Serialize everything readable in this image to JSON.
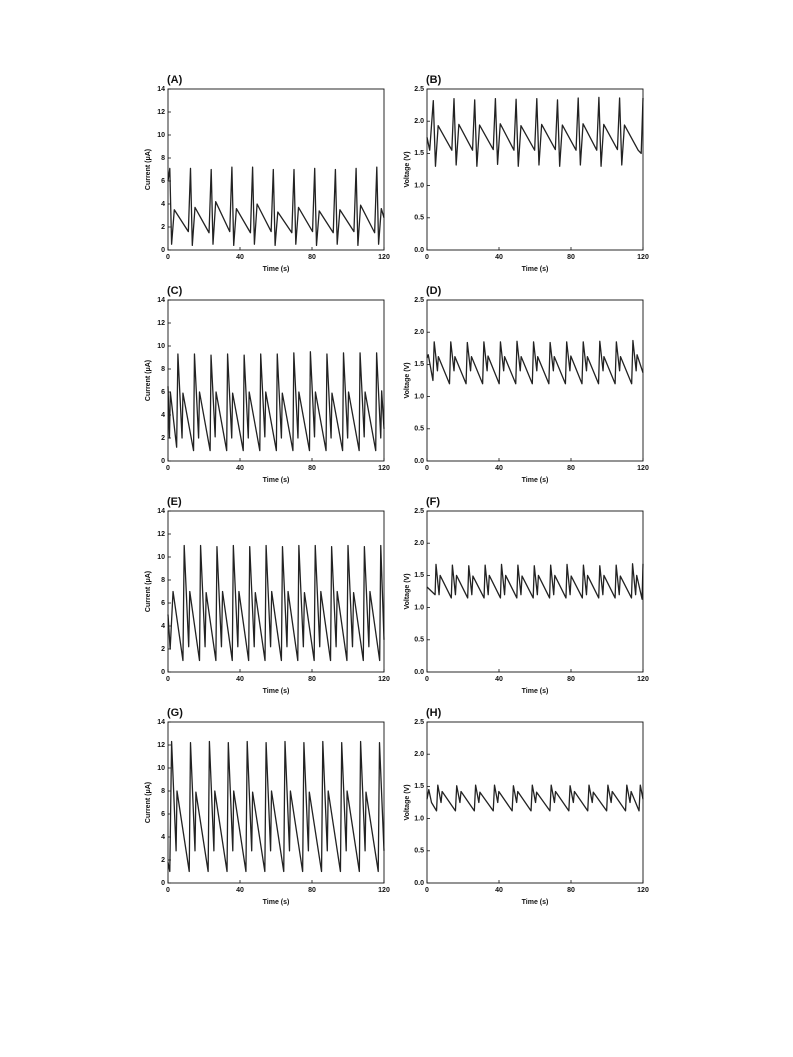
{
  "chart_data": [
    {
      "type": "line",
      "label": "(A)",
      "xlabel": "Time (s)",
      "ylabel": "Current (μA)",
      "color": "#222222",
      "xlim": [
        0,
        120
      ],
      "xticks": [
        0,
        40,
        80,
        120
      ],
      "ylim": [
        0,
        14
      ],
      "yticks": [
        0,
        2,
        4,
        6,
        8,
        10,
        12,
        14
      ],
      "x": [
        0,
        1,
        2,
        3.5,
        11.3,
        12.5,
        13.5,
        15,
        22.8,
        24,
        25,
        26.5,
        34.3,
        35.5,
        36.5,
        38,
        45.8,
        47,
        48,
        49.5,
        57.3,
        58.5,
        59.5,
        61,
        68.8,
        70,
        71,
        72.5,
        80.3,
        81.5,
        82.5,
        84,
        91.8,
        93,
        94,
        95.5,
        103.3,
        104.5,
        105.5,
        107,
        114.8,
        116,
        117,
        118.5,
        120
      ],
      "values": [
        6.0,
        7.1,
        0.5,
        3.5,
        1.6,
        7.1,
        0.4,
        3.7,
        1.5,
        7.0,
        0.5,
        4.2,
        1.6,
        7.2,
        0.4,
        3.6,
        1.5,
        7.2,
        0.5,
        4.0,
        1.6,
        7.0,
        0.4,
        3.3,
        1.5,
        7.0,
        0.5,
        3.7,
        1.6,
        7.1,
        0.4,
        3.4,
        1.5,
        7.0,
        0.5,
        3.5,
        1.6,
        7.1,
        0.4,
        3.9,
        1.5,
        7.2,
        0.5,
        3.6,
        2.8
      ]
    },
    {
      "type": "line",
      "label": "(B)",
      "xlabel": "Time (s)",
      "ylabel": "Voltage (V)",
      "color": "#222222",
      "xlim": [
        0,
        120
      ],
      "xticks": [
        0,
        40,
        80,
        120
      ],
      "ylim": [
        0,
        2.5
      ],
      "yticks": [
        {
          "value": 0,
          "label": "0.0"
        },
        0.5,
        {
          "value": 1,
          "label": "1.0"
        },
        1.5,
        {
          "value": 2,
          "label": "2.0"
        },
        2.5
      ],
      "x": [
        0,
        1.5,
        3.5,
        4.7,
        6.2,
        13.8,
        15,
        16.2,
        17.7,
        25.3,
        26.5,
        27.7,
        29.2,
        36.8,
        38,
        39.2,
        40.7,
        48.3,
        49.5,
        50.7,
        52.2,
        59.8,
        61,
        62.2,
        63.7,
        71.3,
        72.5,
        73.7,
        75.2,
        82.8,
        84,
        85.2,
        86.7,
        94.3,
        95.5,
        96.7,
        98.2,
        105.8,
        107,
        108.2,
        109.7,
        117.3,
        119,
        120
      ],
      "values": [
        1.75,
        1.55,
        2.32,
        1.3,
        1.93,
        1.55,
        2.35,
        1.32,
        1.95,
        1.55,
        2.33,
        1.3,
        1.94,
        1.56,
        2.35,
        1.33,
        1.96,
        1.55,
        2.34,
        1.3,
        1.93,
        1.55,
        2.35,
        1.32,
        1.95,
        1.56,
        2.33,
        1.3,
        1.94,
        1.55,
        2.36,
        1.32,
        1.96,
        1.55,
        2.37,
        1.3,
        1.95,
        1.56,
        2.36,
        1.32,
        1.94,
        1.55,
        1.5,
        2.36
      ]
    },
    {
      "type": "line",
      "label": "(C)",
      "xlabel": "Time (s)",
      "ylabel": "Current (μA)",
      "color": "#222222",
      "xlim": [
        0,
        120
      ],
      "xticks": [
        0,
        40,
        80,
        120
      ],
      "ylim": [
        0,
        14
      ],
      "yticks": [
        0,
        2,
        4,
        6,
        8,
        10,
        12,
        14
      ],
      "x": [
        0,
        0.8,
        1.3,
        4.8,
        5.5,
        7.8,
        8.3,
        14.2,
        14.7,
        17,
        17.5,
        23.4,
        23.9,
        26.2,
        26.7,
        32.6,
        33.1,
        35.4,
        35.9,
        41.8,
        42.3,
        44.6,
        45.1,
        51,
        51.5,
        53.8,
        54.3,
        60.2,
        60.7,
        63,
        63.5,
        69.4,
        69.9,
        72.2,
        72.7,
        78.6,
        79.1,
        81.4,
        81.9,
        87.8,
        88.3,
        90.6,
        91.1,
        97,
        97.5,
        99.8,
        100.3,
        106.2,
        106.7,
        109,
        109.5,
        115.4,
        115.9,
        118.2,
        118.7,
        120
      ],
      "values": [
        6.5,
        2.0,
        6.0,
        1.2,
        9.3,
        2.0,
        5.9,
        0.9,
        9.3,
        2.0,
        6.0,
        0.9,
        9.2,
        2.1,
        6.0,
        0.9,
        9.3,
        2.0,
        5.9,
        0.9,
        9.2,
        2.0,
        6.0,
        0.9,
        9.3,
        2.1,
        6.0,
        0.9,
        9.3,
        2.0,
        5.9,
        0.9,
        9.4,
        2.0,
        6.0,
        0.9,
        9.5,
        2.1,
        6.0,
        0.9,
        9.3,
        2.0,
        5.9,
        0.9,
        9.4,
        2.0,
        6.0,
        0.9,
        9.4,
        2.1,
        6.0,
        0.9,
        9.4,
        2.0,
        6.1,
        2.8
      ]
    },
    {
      "type": "line",
      "label": "(D)",
      "xlabel": "Time (s)",
      "ylabel": "Voltage (V)",
      "color": "#222222",
      "xlim": [
        0,
        120
      ],
      "xticks": [
        0,
        40,
        80,
        120
      ],
      "ylim": [
        0,
        2.5
      ],
      "yticks": [
        {
          "value": 0,
          "label": "0.0"
        },
        0.5,
        {
          "value": 1,
          "label": "1.0"
        },
        1.5,
        {
          "value": 2,
          "label": "2.0"
        },
        2.5
      ],
      "x": [
        0,
        0.7,
        3.3,
        4,
        5.8,
        6.3,
        12.5,
        13.2,
        15,
        15.5,
        21.7,
        22.4,
        24.2,
        24.7,
        30.9,
        31.6,
        33.4,
        33.9,
        40.1,
        40.8,
        42.6,
        43.1,
        49.3,
        50,
        51.8,
        52.3,
        58.5,
        59.2,
        61,
        61.5,
        67.7,
        68.4,
        70.2,
        70.7,
        76.9,
        77.6,
        79.4,
        79.9,
        86.1,
        86.8,
        88.6,
        89.1,
        95.3,
        96,
        97.8,
        98.3,
        104.5,
        105.2,
        107,
        107.5,
        113.7,
        114.4,
        116.2,
        116.7,
        120
      ],
      "values": [
        1.6,
        1.65,
        1.25,
        1.85,
        1.4,
        1.62,
        1.2,
        1.85,
        1.4,
        1.62,
        1.2,
        1.84,
        1.4,
        1.62,
        1.2,
        1.85,
        1.4,
        1.63,
        1.2,
        1.85,
        1.4,
        1.62,
        1.2,
        1.86,
        1.4,
        1.62,
        1.2,
        1.85,
        1.4,
        1.62,
        1.2,
        1.84,
        1.4,
        1.62,
        1.2,
        1.85,
        1.4,
        1.63,
        1.2,
        1.85,
        1.4,
        1.62,
        1.2,
        1.86,
        1.4,
        1.62,
        1.2,
        1.85,
        1.4,
        1.62,
        1.2,
        1.87,
        1.4,
        1.65,
        1.37
      ]
    },
    {
      "type": "line",
      "label": "(E)",
      "xlabel": "Time (s)",
      "ylabel": "Current (μA)",
      "color": "#222222",
      "xlim": [
        0,
        120
      ],
      "xticks": [
        0,
        40,
        80,
        120
      ],
      "ylim": [
        0,
        14
      ],
      "yticks": [
        0,
        2,
        4,
        6,
        8,
        10,
        12,
        14
      ],
      "x": [
        0,
        1.2,
        2.8,
        8.3,
        9,
        11.5,
        12.1,
        17.5,
        18.1,
        20.6,
        21.2,
        26.6,
        27.2,
        29.7,
        30.3,
        35.7,
        36.3,
        38.8,
        39.4,
        44.8,
        45.4,
        47.9,
        48.5,
        53.9,
        54.5,
        57,
        57.6,
        63,
        63.6,
        66.1,
        66.7,
        72.1,
        72.7,
        75.2,
        75.8,
        81.2,
        81.8,
        84.3,
        84.9,
        90.3,
        90.9,
        93.4,
        94,
        99.4,
        100,
        102.5,
        103.1,
        108.5,
        109.1,
        111.6,
        112.2,
        117.6,
        118.2,
        120
      ],
      "values": [
        5.0,
        2.0,
        7.0,
        1.0,
        11.0,
        2.2,
        7.0,
        1.0,
        11.0,
        2.2,
        6.9,
        1.0,
        10.9,
        2.2,
        7.0,
        1.0,
        11.0,
        2.2,
        7.0,
        1.0,
        10.9,
        2.2,
        6.9,
        1.0,
        11.0,
        2.2,
        7.0,
        1.0,
        10.9,
        2.2,
        7.0,
        1.0,
        11.0,
        2.2,
        6.9,
        1.0,
        11.0,
        2.2,
        7.0,
        1.0,
        10.9,
        2.2,
        7.0,
        1.0,
        11.0,
        2.2,
        6.9,
        1.0,
        10.9,
        2.2,
        7.0,
        1.0,
        11.0,
        2.8
      ]
    },
    {
      "type": "line",
      "label": "(F)",
      "xlabel": "Time (s)",
      "ylabel": "Voltage (V)",
      "color": "#222222",
      "xlim": [
        0,
        120
      ],
      "xticks": [
        0,
        40,
        80,
        120
      ],
      "ylim": [
        0,
        2.5
      ],
      "yticks": [
        {
          "value": 0,
          "label": "0.0"
        },
        0.5,
        {
          "value": 1,
          "label": "1.0"
        },
        1.5,
        {
          "value": 2,
          "label": "2.0"
        },
        2.5
      ],
      "x": [
        0,
        4.5,
        5,
        6.7,
        7.3,
        13.5,
        14.1,
        15.8,
        16.4,
        22.6,
        23.2,
        24.9,
        25.5,
        31.7,
        32.3,
        34,
        34.6,
        40.8,
        41.4,
        43.1,
        43.7,
        49.9,
        50.5,
        52.2,
        52.8,
        59,
        59.6,
        61.3,
        61.9,
        68.1,
        68.7,
        70.4,
        71,
        77.2,
        77.8,
        79.5,
        80.1,
        86.3,
        86.9,
        88.6,
        89.2,
        95.4,
        96,
        97.7,
        98.3,
        104.5,
        105.1,
        106.8,
        107.4,
        113.6,
        114.2,
        115.9,
        116.5,
        119.5,
        120
      ],
      "values": [
        1.32,
        1.2,
        1.67,
        1.2,
        1.5,
        1.15,
        1.66,
        1.2,
        1.5,
        1.15,
        1.65,
        1.2,
        1.49,
        1.15,
        1.66,
        1.2,
        1.5,
        1.15,
        1.67,
        1.2,
        1.5,
        1.15,
        1.66,
        1.2,
        1.49,
        1.15,
        1.65,
        1.2,
        1.5,
        1.15,
        1.66,
        1.2,
        1.5,
        1.15,
        1.67,
        1.2,
        1.49,
        1.15,
        1.66,
        1.2,
        1.5,
        1.15,
        1.65,
        1.2,
        1.5,
        1.15,
        1.66,
        1.2,
        1.49,
        1.15,
        1.68,
        1.2,
        1.5,
        1.13,
        1.68
      ]
    },
    {
      "type": "line",
      "label": "(G)",
      "xlabel": "Time (s)",
      "ylabel": "Current (μA)",
      "color": "#222222",
      "xlim": [
        0,
        120
      ],
      "xticks": [
        0,
        40,
        80,
        120
      ],
      "ylim": [
        0,
        14
      ],
      "yticks": [
        0,
        2,
        4,
        6,
        8,
        10,
        12,
        14
      ],
      "x": [
        0,
        1,
        2,
        4.5,
        5,
        11.8,
        12.5,
        15,
        15.5,
        22.3,
        23,
        25.5,
        26,
        32.8,
        33.5,
        36,
        36.5,
        43.3,
        44,
        46.5,
        47,
        53.8,
        54.5,
        57,
        57.5,
        64.3,
        65,
        67.5,
        68,
        74.8,
        75.5,
        78,
        78.5,
        85.3,
        86,
        88.5,
        89,
        95.8,
        96.5,
        99,
        99.5,
        106.3,
        107,
        109.5,
        110,
        116.8,
        117.5,
        120
      ],
      "values": [
        1.8,
        1.0,
        12.3,
        2.8,
        8.0,
        1.0,
        12.2,
        2.8,
        7.9,
        1.0,
        12.3,
        2.8,
        8.0,
        1.0,
        12.2,
        2.8,
        8.0,
        1.0,
        12.3,
        2.8,
        7.9,
        1.0,
        12.2,
        2.8,
        8.0,
        1.0,
        12.3,
        2.8,
        8.0,
        1.0,
        12.2,
        2.8,
        7.9,
        1.0,
        12.3,
        2.8,
        8.0,
        1.0,
        12.2,
        2.8,
        8.0,
        1.0,
        12.3,
        2.8,
        7.9,
        1.0,
        12.2,
        2.8
      ]
    },
    {
      "type": "line",
      "label": "(H)",
      "xlabel": "Time (s)",
      "ylabel": "Voltage (V)",
      "color": "#222222",
      "xlim": [
        0,
        120
      ],
      "xticks": [
        0,
        40,
        80,
        120
      ],
      "ylim": [
        0,
        2.5
      ],
      "yticks": [
        {
          "value": 0,
          "label": "0.0"
        },
        0.5,
        {
          "value": 1,
          "label": "1.0"
        },
        1.5,
        {
          "value": 2,
          "label": "2.0"
        },
        2.5
      ],
      "x": [
        0,
        1,
        2.5,
        5.3,
        6,
        7.8,
        8.4,
        15.8,
        16.5,
        18.3,
        18.9,
        26.3,
        27,
        28.8,
        29.4,
        36.8,
        37.5,
        39.3,
        39.9,
        47.3,
        48,
        49.8,
        50.4,
        57.8,
        58.5,
        60.3,
        60.9,
        68.3,
        69,
        70.8,
        71.4,
        78.8,
        79.5,
        81.3,
        81.9,
        89.3,
        90,
        91.8,
        92.4,
        99.8,
        100.5,
        102.3,
        102.9,
        110.3,
        111,
        112.8,
        113.4,
        117.8,
        118.5,
        120
      ],
      "values": [
        1.3,
        1.45,
        1.25,
        1.12,
        1.52,
        1.25,
        1.42,
        1.12,
        1.51,
        1.25,
        1.42,
        1.12,
        1.52,
        1.25,
        1.41,
        1.12,
        1.52,
        1.25,
        1.42,
        1.12,
        1.51,
        1.25,
        1.42,
        1.12,
        1.52,
        1.25,
        1.41,
        1.12,
        1.52,
        1.25,
        1.42,
        1.12,
        1.51,
        1.25,
        1.42,
        1.12,
        1.52,
        1.25,
        1.41,
        1.12,
        1.52,
        1.25,
        1.42,
        1.12,
        1.52,
        1.25,
        1.42,
        1.12,
        1.52,
        1.3
      ]
    }
  ]
}
